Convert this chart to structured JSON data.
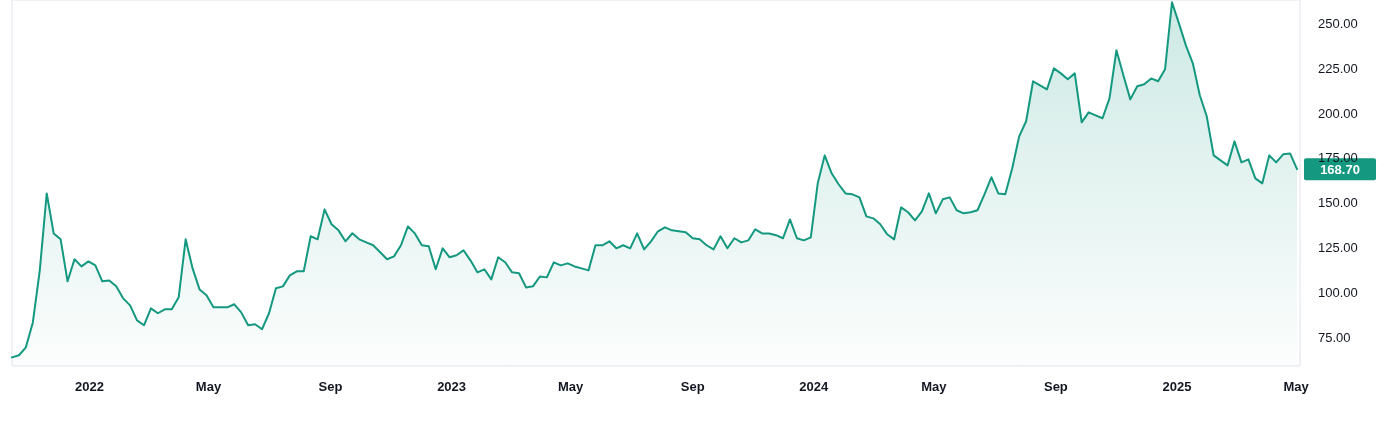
{
  "chart_data": {
    "type": "area",
    "x": [
      "2021-10-15",
      "2021-10-22",
      "2021-10-29",
      "2021-11-05",
      "2021-11-12",
      "2021-11-19",
      "2021-11-26",
      "2021-12-03",
      "2021-12-10",
      "2021-12-17",
      "2021-12-24",
      "2021-12-31",
      "2022-01-07",
      "2022-01-14",
      "2022-01-21",
      "2022-01-28",
      "2022-02-04",
      "2022-02-11",
      "2022-02-18",
      "2022-02-25",
      "2022-03-04",
      "2022-03-11",
      "2022-03-18",
      "2022-03-25",
      "2022-04-01",
      "2022-04-08",
      "2022-04-15",
      "2022-04-22",
      "2022-04-29",
      "2022-05-06",
      "2022-05-13",
      "2022-05-20",
      "2022-05-27",
      "2022-06-03",
      "2022-06-10",
      "2022-06-17",
      "2022-06-24",
      "2022-07-01",
      "2022-07-08",
      "2022-07-15",
      "2022-07-22",
      "2022-07-29",
      "2022-08-05",
      "2022-08-12",
      "2022-08-19",
      "2022-08-26",
      "2022-09-02",
      "2022-09-09",
      "2022-09-16",
      "2022-09-23",
      "2022-09-30",
      "2022-10-07",
      "2022-10-14",
      "2022-10-21",
      "2022-10-28",
      "2022-11-04",
      "2022-11-11",
      "2022-11-18",
      "2022-11-25",
      "2022-12-02",
      "2022-12-09",
      "2022-12-16",
      "2022-12-23",
      "2022-12-30",
      "2023-01-06",
      "2023-01-13",
      "2023-01-20",
      "2023-01-27",
      "2023-02-03",
      "2023-02-10",
      "2023-02-17",
      "2023-02-24",
      "2023-03-03",
      "2023-03-10",
      "2023-03-17",
      "2023-03-24",
      "2023-03-31",
      "2023-04-07",
      "2023-04-14",
      "2023-04-21",
      "2023-04-28",
      "2023-05-05",
      "2023-05-12",
      "2023-05-19",
      "2023-05-26",
      "2023-06-02",
      "2023-06-09",
      "2023-06-16",
      "2023-06-23",
      "2023-06-30",
      "2023-07-07",
      "2023-07-14",
      "2023-07-21",
      "2023-07-28",
      "2023-08-04",
      "2023-08-11",
      "2023-08-18",
      "2023-08-25",
      "2023-09-01",
      "2023-09-08",
      "2023-09-15",
      "2023-09-22",
      "2023-09-29",
      "2023-10-06",
      "2023-10-13",
      "2023-10-20",
      "2023-10-27",
      "2023-11-03",
      "2023-11-10",
      "2023-11-17",
      "2023-11-24",
      "2023-12-01",
      "2023-12-08",
      "2023-12-15",
      "2023-12-22",
      "2023-12-29",
      "2024-01-05",
      "2024-01-12",
      "2024-01-19",
      "2024-01-26",
      "2024-02-02",
      "2024-02-09",
      "2024-02-16",
      "2024-02-23",
      "2024-03-01",
      "2024-03-08",
      "2024-03-15",
      "2024-03-22",
      "2024-03-29",
      "2024-04-05",
      "2024-04-12",
      "2024-04-19",
      "2024-04-26",
      "2024-05-03",
      "2024-05-10",
      "2024-05-17",
      "2024-05-24",
      "2024-05-31",
      "2024-06-07",
      "2024-06-14",
      "2024-06-21",
      "2024-06-28",
      "2024-07-05",
      "2024-07-12",
      "2024-07-19",
      "2024-07-26",
      "2024-08-02",
      "2024-08-09",
      "2024-08-16",
      "2024-08-23",
      "2024-08-30",
      "2024-09-06",
      "2024-09-13",
      "2024-09-20",
      "2024-09-27",
      "2024-10-04",
      "2024-10-11",
      "2024-10-18",
      "2024-10-25",
      "2024-11-01",
      "2024-11-08",
      "2024-11-15",
      "2024-11-22",
      "2024-11-29",
      "2024-12-06",
      "2024-12-13",
      "2024-12-20",
      "2024-12-27",
      "2025-01-03",
      "2025-01-10",
      "2025-01-17",
      "2025-01-24",
      "2025-01-31",
      "2025-02-07",
      "2025-02-14",
      "2025-02-21",
      "2025-02-28",
      "2025-03-07",
      "2025-03-14",
      "2025-03-21",
      "2025-03-28",
      "2025-04-04",
      "2025-04-11",
      "2025-04-18",
      "2025-04-25",
      "2025-05-02"
    ],
    "values": [
      63.8,
      65,
      69.4,
      83.3,
      112.3,
      155.2,
      132.9,
      129.6,
      106.2,
      118.5,
      114.5,
      117.3,
      115.1,
      106.2,
      106.7,
      103.4,
      96.7,
      92.8,
      84.4,
      81.7,
      91.1,
      88.4,
      90.6,
      90.6,
      97.3,
      129.6,
      113.4,
      101.7,
      98.4,
      91.7,
      91.7,
      91.7,
      93.4,
      88.9,
      81.7,
      82.3,
      79.5,
      88.4,
      102.3,
      103.4,
      109.5,
      111.8,
      111.8,
      131.3,
      129.6,
      146.3,
      138,
      134.6,
      128.5,
      133,
      129.6,
      127.9,
      126.3,
      122.4,
      118.5,
      120.1,
      126.3,
      136.8,
      132.9,
      126.3,
      125.7,
      112.9,
      124.6,
      119.6,
      120.7,
      123.5,
      117.9,
      111.2,
      112.9,
      107.3,
      119.6,
      116.8,
      111.2,
      110.7,
      102.8,
      103.4,
      108.9,
      108.4,
      116.8,
      115.1,
      116.2,
      114.5,
      113.4,
      112.3,
      126.3,
      126.3,
      128.5,
      124.6,
      126.3,
      124.6,
      132.9,
      124,
      128.5,
      134.1,
      136.3,
      134.6,
      134.1,
      133.5,
      130.2,
      129.6,
      126.3,
      124,
      131.3,
      124.6,
      130.2,
      127.9,
      129,
      135.2,
      132.9,
      132.9,
      131.9,
      130.2,
      140.7,
      130.2,
      129,
      130.7,
      160.8,
      176.4,
      166.4,
      160.3,
      155.2,
      154.7,
      153,
      142.4,
      141.3,
      138,
      132.4,
      129.6,
      147.4,
      144.7,
      140.2,
      145.2,
      155.2,
      144.1,
      151.9,
      153,
      145.8,
      144.1,
      144.7,
      145.8,
      154.7,
      164.2,
      155.2,
      154.7,
      169.2,
      187,
      195.4,
      217.7,
      215.4,
      213.2,
      224.9,
      222.1,
      218.8,
      222.1,
      194.8,
      200.4,
      198.7,
      197.1,
      208.2,
      235,
      221,
      207.6,
      214.9,
      216,
      219.3,
      217.7,
      224.4,
      261.7,
      250,
      237.7,
      227.7,
      209.9,
      198.2,
      176.4,
      173.6,
      170.8,
      184.2,
      172.5,
      174.2,
      163.6,
      160.8,
      176.4,
      172.5,
      177,
      177.5,
      168.7
    ],
    "color": "#149880",
    "xlim": [
      "2021-10-15",
      "2025-05-05"
    ],
    "xticks": [
      {
        "value": "2022-01-01",
        "label": "2022"
      },
      {
        "value": "2022-05-01",
        "label": "May"
      },
      {
        "value": "2022-09-01",
        "label": "Sep"
      },
      {
        "value": "2023-01-01",
        "label": "2023"
      },
      {
        "value": "2023-05-01",
        "label": "May"
      },
      {
        "value": "2023-09-01",
        "label": "Sep"
      },
      {
        "value": "2024-01-01",
        "label": "2024"
      },
      {
        "value": "2024-05-01",
        "label": "May"
      },
      {
        "value": "2024-09-01",
        "label": "Sep"
      },
      {
        "value": "2025-01-01",
        "label": "2025"
      },
      {
        "value": "2025-05-01",
        "label": "May"
      }
    ],
    "ylim": [
      59,
      263
    ],
    "yticks": [
      {
        "value": 75,
        "label": "75.00"
      },
      {
        "value": 100,
        "label": "100.00"
      },
      {
        "value": 125,
        "label": "125.00"
      },
      {
        "value": 150,
        "label": "150.00"
      },
      {
        "value": 175,
        "label": "175.00"
      },
      {
        "value": 200,
        "label": "200.00"
      },
      {
        "value": 225,
        "label": "225.00"
      },
      {
        "value": 250,
        "label": "250.00"
      }
    ],
    "annotations": [
      {
        "text": "168.70",
        "x": "2025-05-02",
        "y": 168.7
      }
    ],
    "grid": false,
    "marker": "none",
    "line_style": "solid"
  }
}
